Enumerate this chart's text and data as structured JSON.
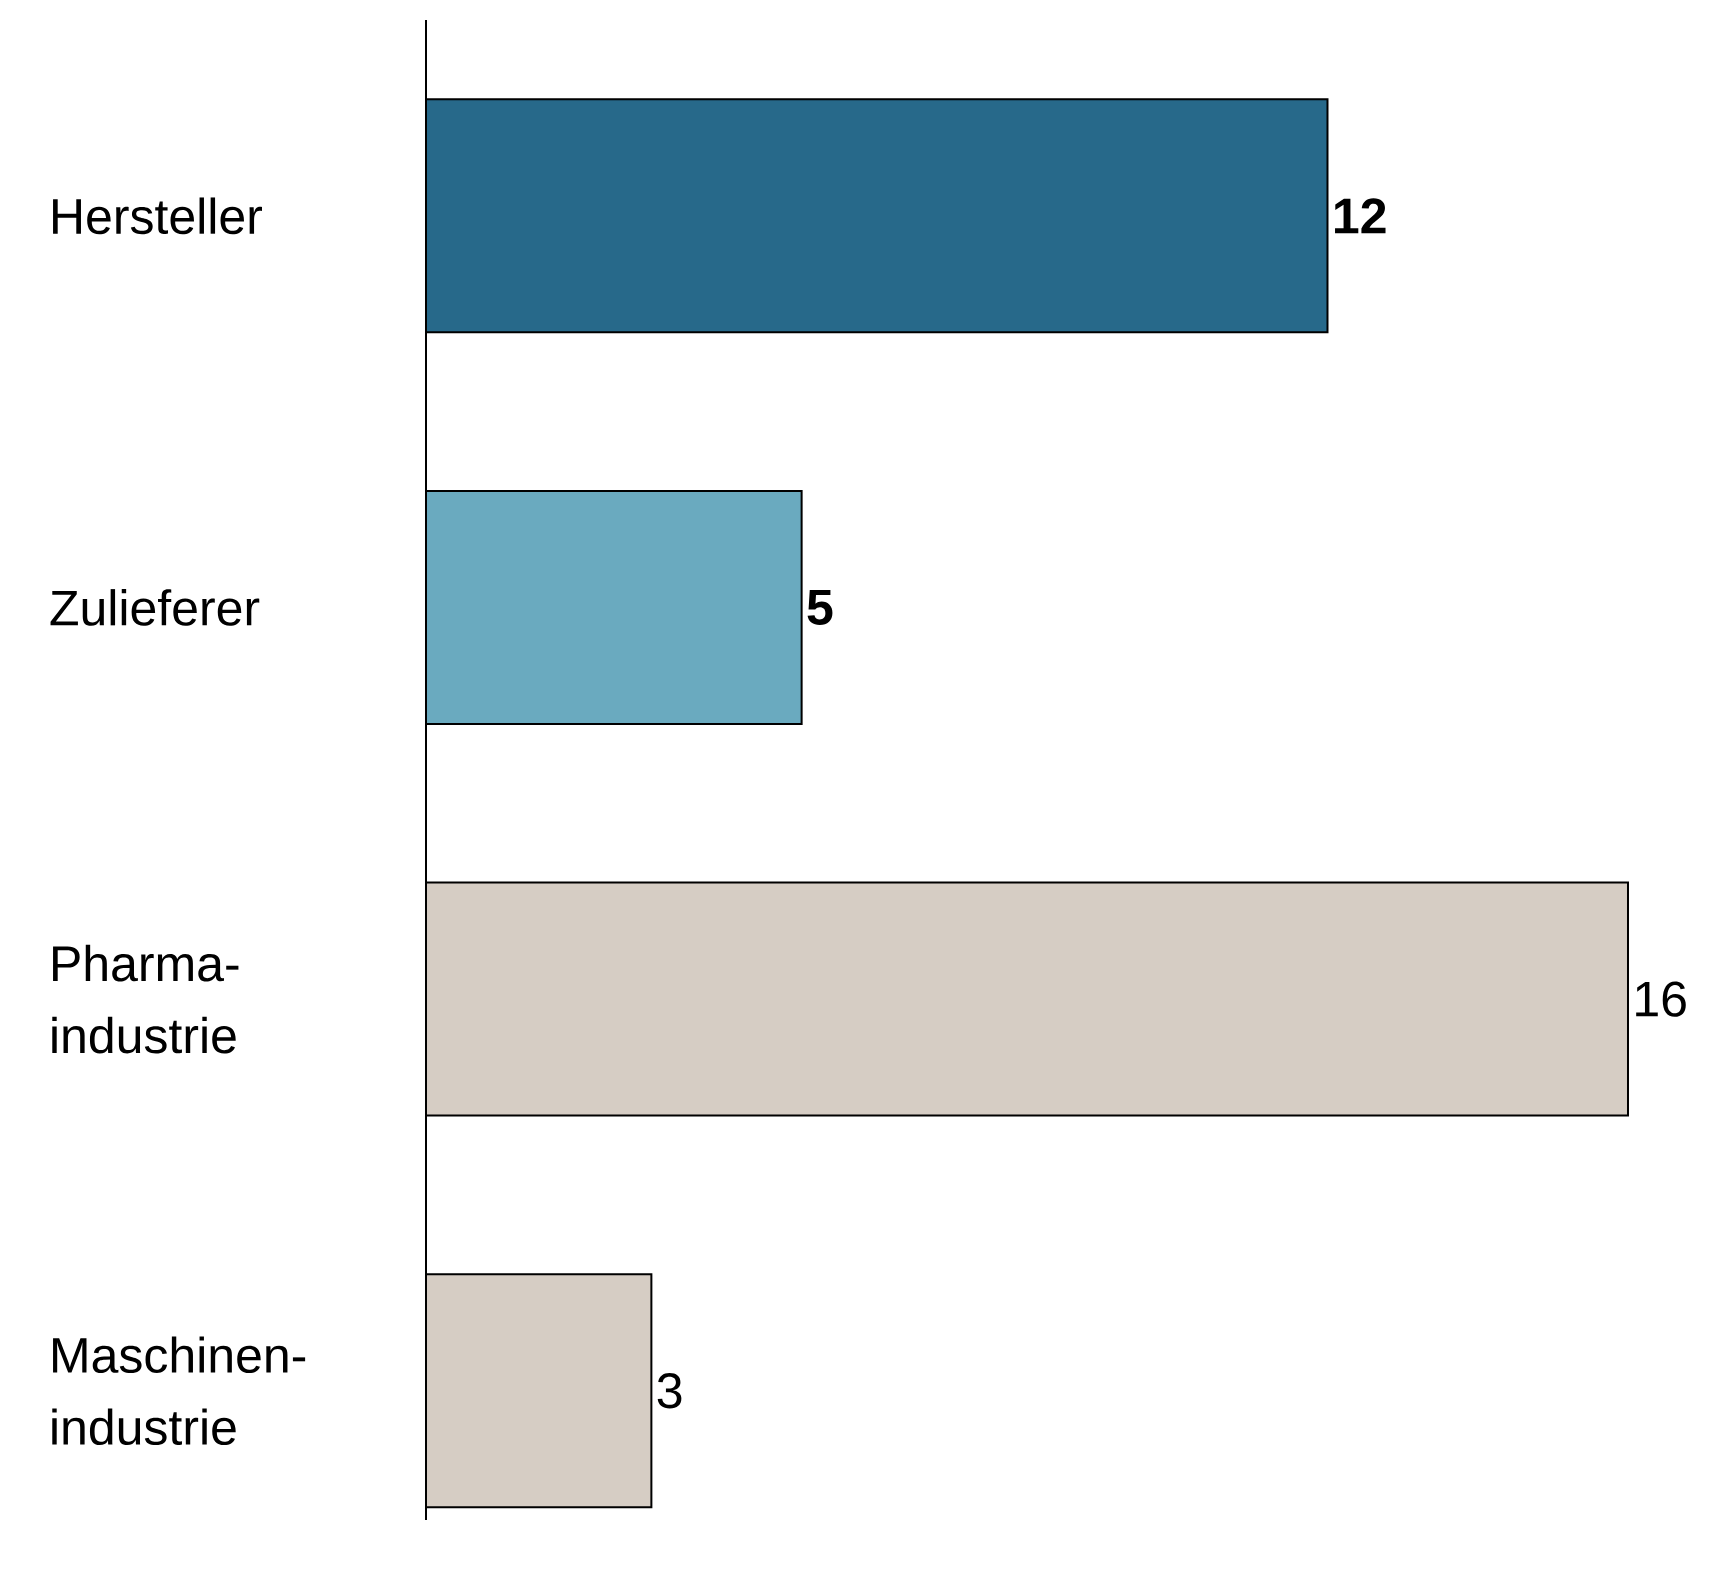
{
  "chart_data": {
    "type": "bar",
    "orientation": "horizontal",
    "categories": [
      "Hersteller",
      "Zulieferer",
      "Pharma-industrie",
      "Maschinen-industrie"
    ],
    "values": [
      12,
      5,
      16,
      3
    ],
    "colors": [
      "#27698a",
      "#6aaabf",
      "#d6cdc4",
      "#d6cdc4"
    ],
    "value_labels": [
      "**12**",
      "**5**",
      "16",
      "3"
    ]
  }
}
